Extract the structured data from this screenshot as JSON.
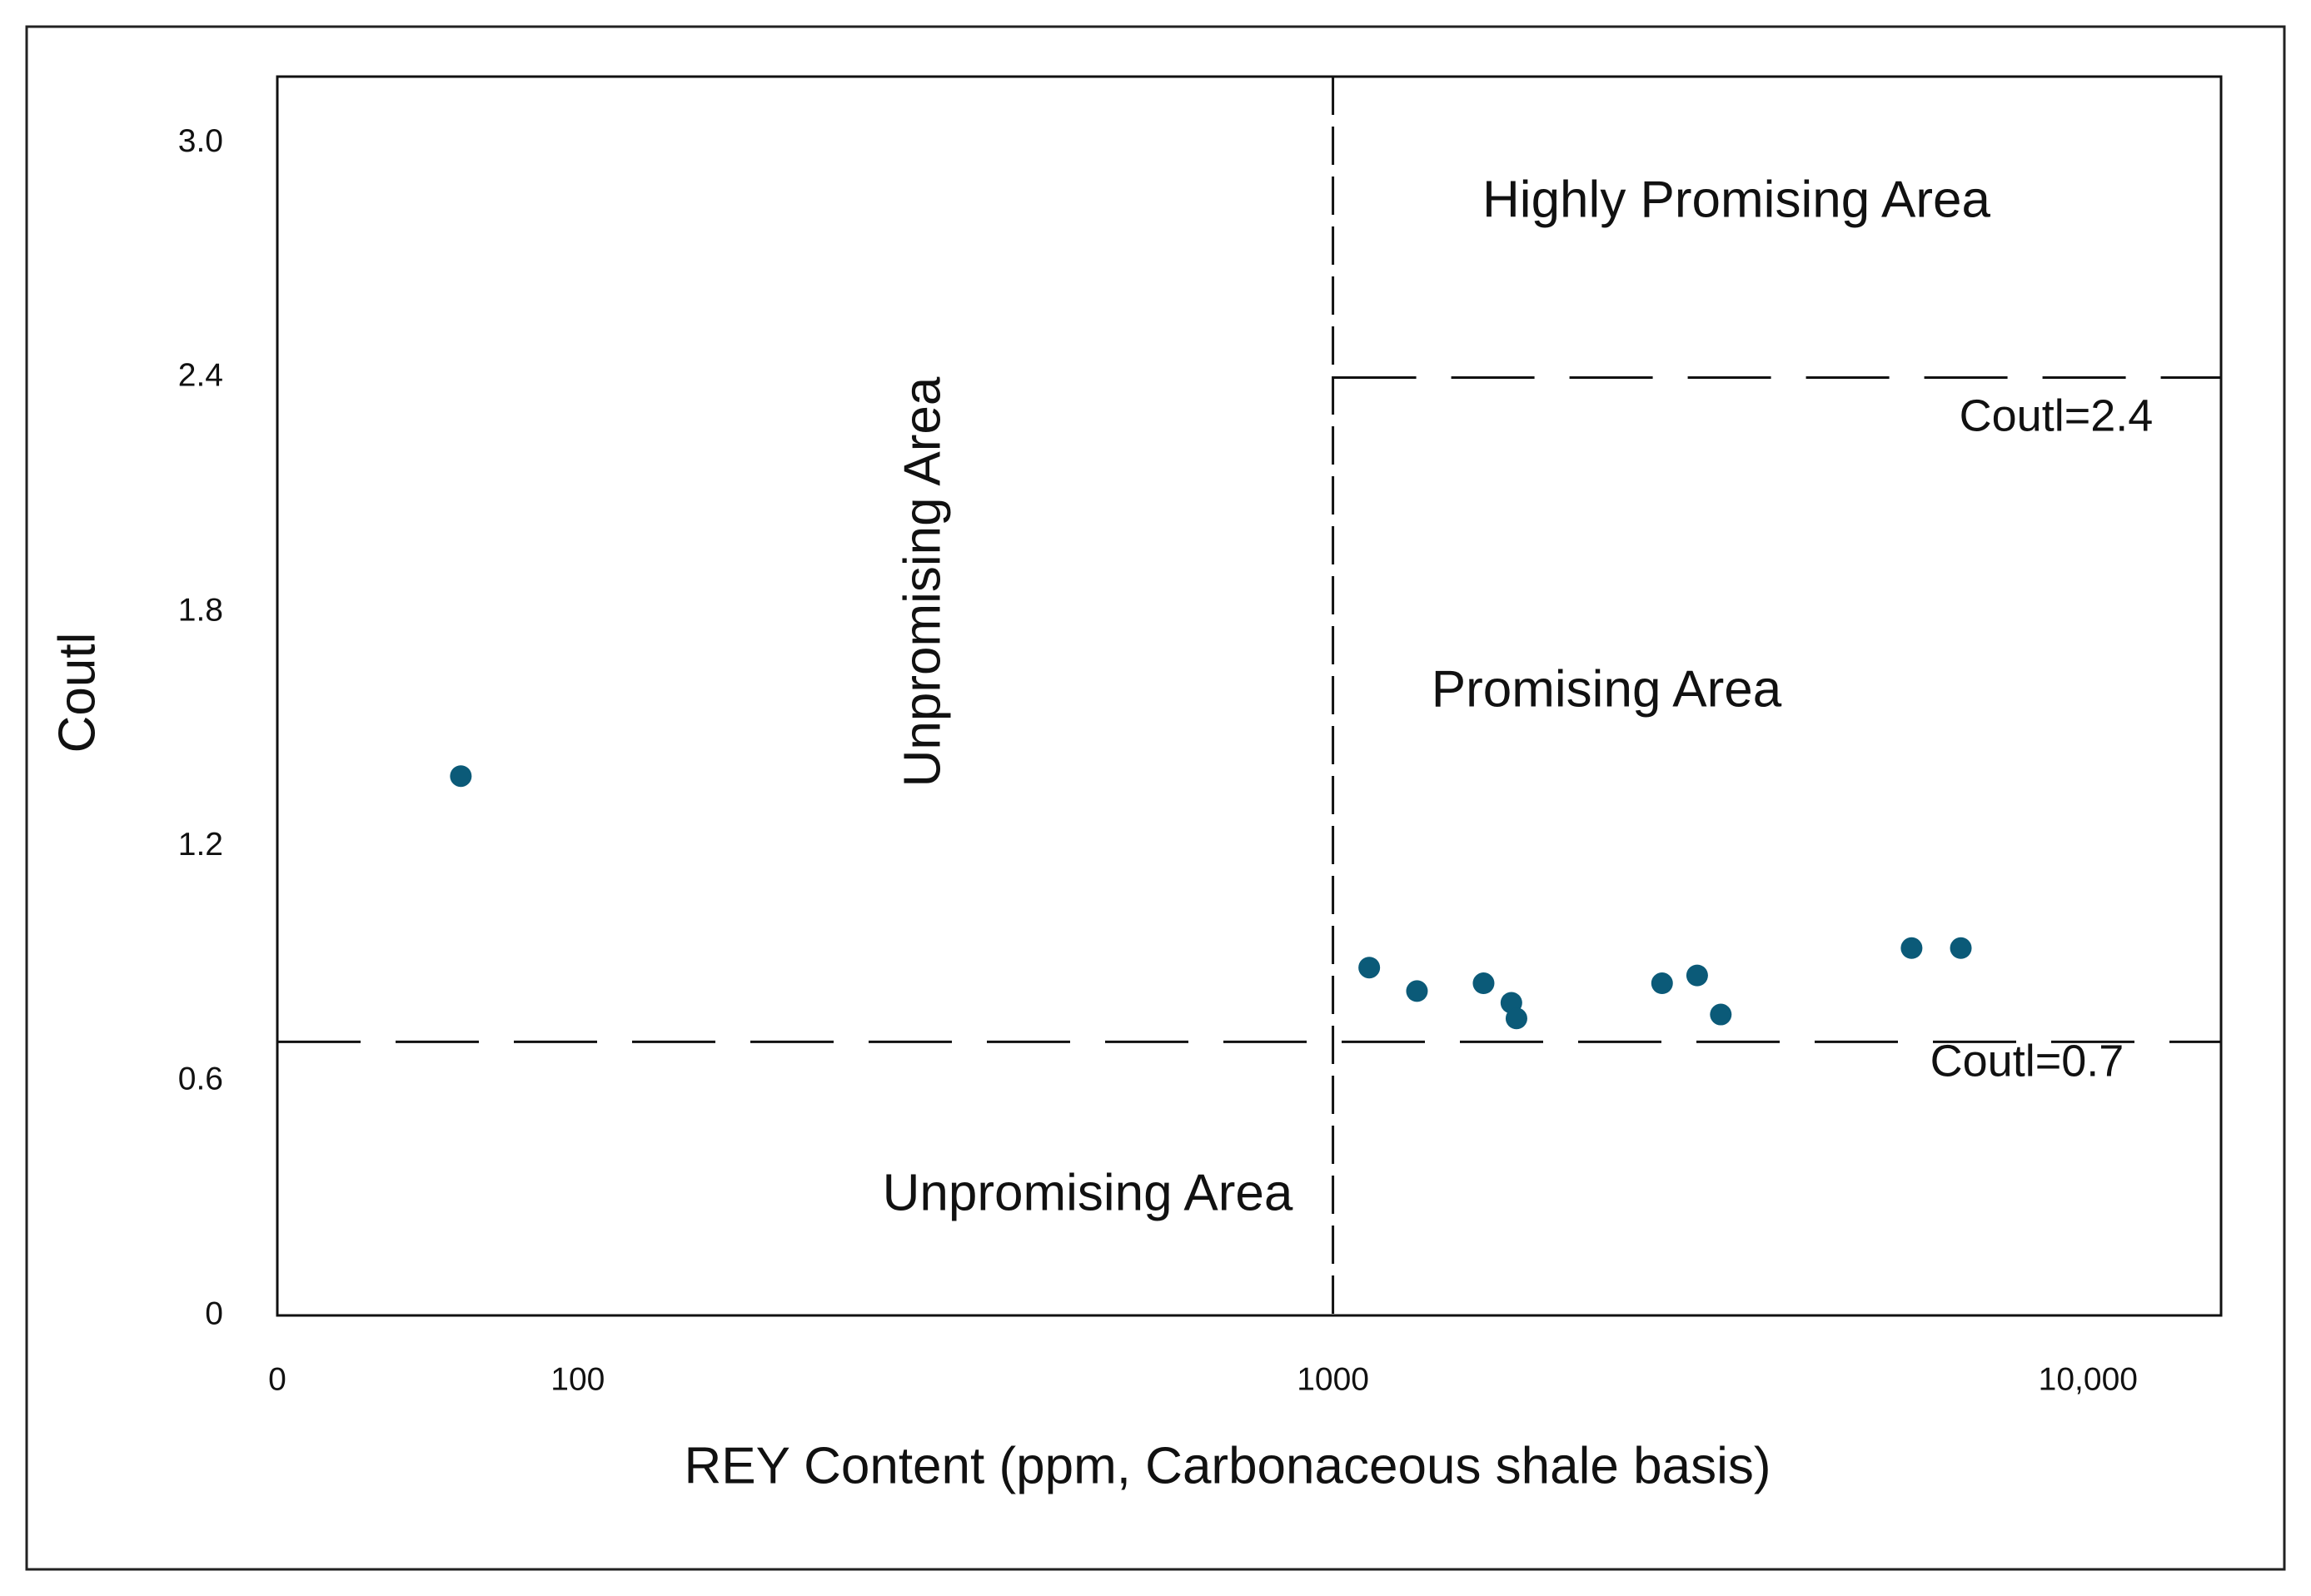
{
  "chart_data": {
    "type": "scatter",
    "x_label": "REY Content (ppm, Carbonaceous shale basis)",
    "y_label": "Coutl",
    "xscale": "log",
    "xlim": [
      40,
      15000
    ],
    "ylim": [
      0,
      3.17
    ],
    "xticks": [
      0,
      100,
      1000,
      {
        "value": 10000,
        "label": "10,000"
      }
    ],
    "yticks": [
      0,
      0.6,
      1.2,
      1.8,
      2.4,
      {
        "value": 3.0,
        "label": "3.0"
      }
    ],
    "color": "#0b5a78",
    "x": [
      70,
      1117,
      1292,
      1583,
      1723,
      1750,
      2728,
      3036,
      3263,
      5838,
      6784
    ],
    "values": [
      1.38,
      0.89,
      0.83,
      0.85,
      0.8,
      0.76,
      0.85,
      0.87,
      0.77,
      0.94,
      0.94
    ],
    "vlines": [
      1000
    ],
    "hlines": [
      {
        "value": 2.4,
        "from": 1000
      },
      {
        "value": 0.7
      }
    ],
    "annotations": [
      "Highly Promising Area",
      "Coutl=2.4",
      "Promising Area",
      "Unpromising Area",
      "Coutl=0.7",
      "Unpromising Area"
    ]
  }
}
